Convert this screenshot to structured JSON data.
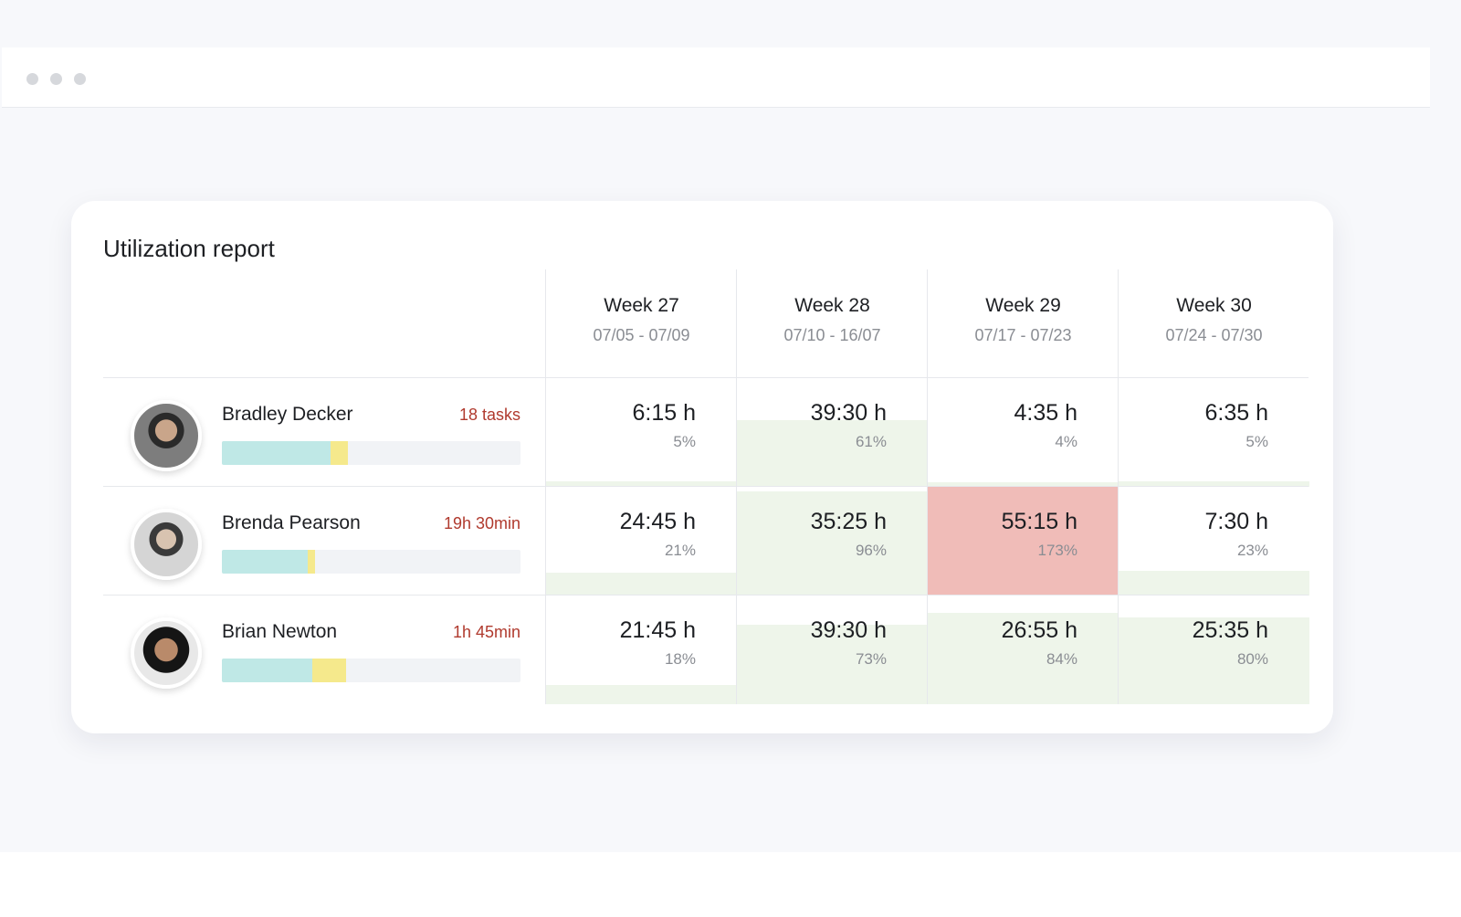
{
  "title": "Utilization report",
  "weeks": [
    {
      "label": "Week 27",
      "dates": "07/05 - 07/09"
    },
    {
      "label": "Week 28",
      "dates": "07/10 - 16/07"
    },
    {
      "label": "Week 29",
      "dates": "07/17 - 07/23"
    },
    {
      "label": "Week 30",
      "dates": "07/24 - 07/30"
    }
  ],
  "people": [
    {
      "name": "Bradley Decker",
      "badge": "18 tasks",
      "cells": [
        {
          "hours": "6:15 h",
          "utilization": "5%"
        },
        {
          "hours": "39:30 h",
          "utilization": "61%"
        },
        {
          "hours": "4:35 h",
          "utilization": "4%"
        },
        {
          "hours": "6:35 h",
          "utilization": "5%"
        }
      ]
    },
    {
      "name": "Brenda Pearson",
      "badge": "19h 30min",
      "cells": [
        {
          "hours": "24:45 h",
          "utilization": "21%"
        },
        {
          "hours": "35:25 h",
          "utilization": "96%"
        },
        {
          "hours": "55:15 h",
          "utilization": "173%"
        },
        {
          "hours": "7:30 h",
          "utilization": "23%"
        }
      ]
    },
    {
      "name": "Brian Newton",
      "badge": "1h 45min",
      "cells": [
        {
          "hours": "21:45 h",
          "utilization": "18%"
        },
        {
          "hours": "39:30 h",
          "utilization": "73%"
        },
        {
          "hours": "26:55 h",
          "utilization": "84%"
        },
        {
          "hours": "25:35 h",
          "utilization": "80%"
        }
      ]
    }
  ]
}
